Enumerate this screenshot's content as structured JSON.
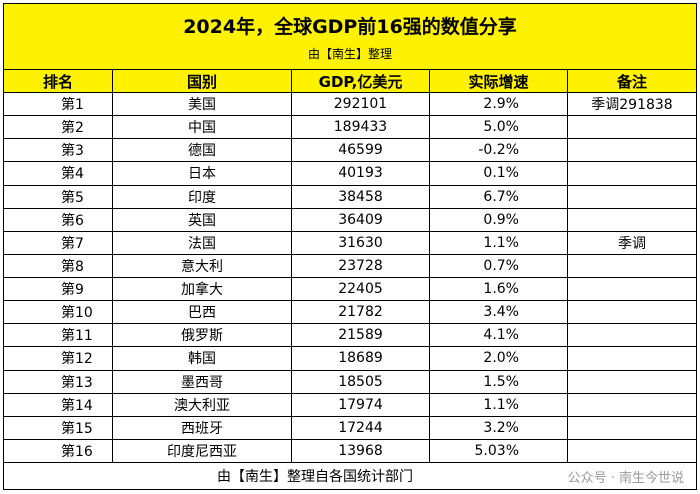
{
  "header": {
    "title": "2024年，全球GDP前16强的数值分享",
    "subtitle": "由【南生】整理"
  },
  "table": {
    "columns": [
      "排名",
      "国别",
      "GDP,亿美元",
      "实际增速",
      "备注"
    ],
    "rows": [
      [
        "第1",
        "美国",
        "292101",
        "2.9%",
        "季调291838"
      ],
      [
        "第2",
        "中国",
        "189433",
        "5.0%"
      ],
      [
        "第3",
        "德国",
        "46599",
        "-0.2%"
      ],
      [
        "第4",
        "日本",
        "40193",
        "0.1%"
      ],
      [
        "第5",
        "印度",
        "38458",
        "6.7%"
      ],
      [
        "第6",
        "英国",
        "36409",
        "0.9%"
      ],
      [
        "第7",
        "法国",
        "31630",
        "1.1%",
        "季调"
      ],
      [
        "第8",
        "意大利",
        "23728",
        "0.7%"
      ],
      [
        "第9",
        "加拿大",
        "22405",
        "1.6%"
      ],
      [
        "第10",
        "巴西",
        "21782",
        "3.4%"
      ],
      [
        "第11",
        "俄罗斯",
        "21589",
        "4.1%"
      ],
      [
        "第12",
        "韩国",
        "18689",
        "2.0%"
      ],
      [
        "第13",
        "墨西哥",
        "18505",
        "1.5%"
      ],
      [
        "第14",
        "澳大利亚",
        "17974",
        "1.1%"
      ],
      [
        "第15",
        "西班牙",
        "17244",
        "3.2%"
      ],
      [
        "第16",
        "印度尼西亚",
        "13968",
        "5.03%"
      ]
    ]
  },
  "footer": {
    "source": "由【南生】整理自各国统计部门",
    "watermark": "公众号 · 南生今世说"
  }
}
